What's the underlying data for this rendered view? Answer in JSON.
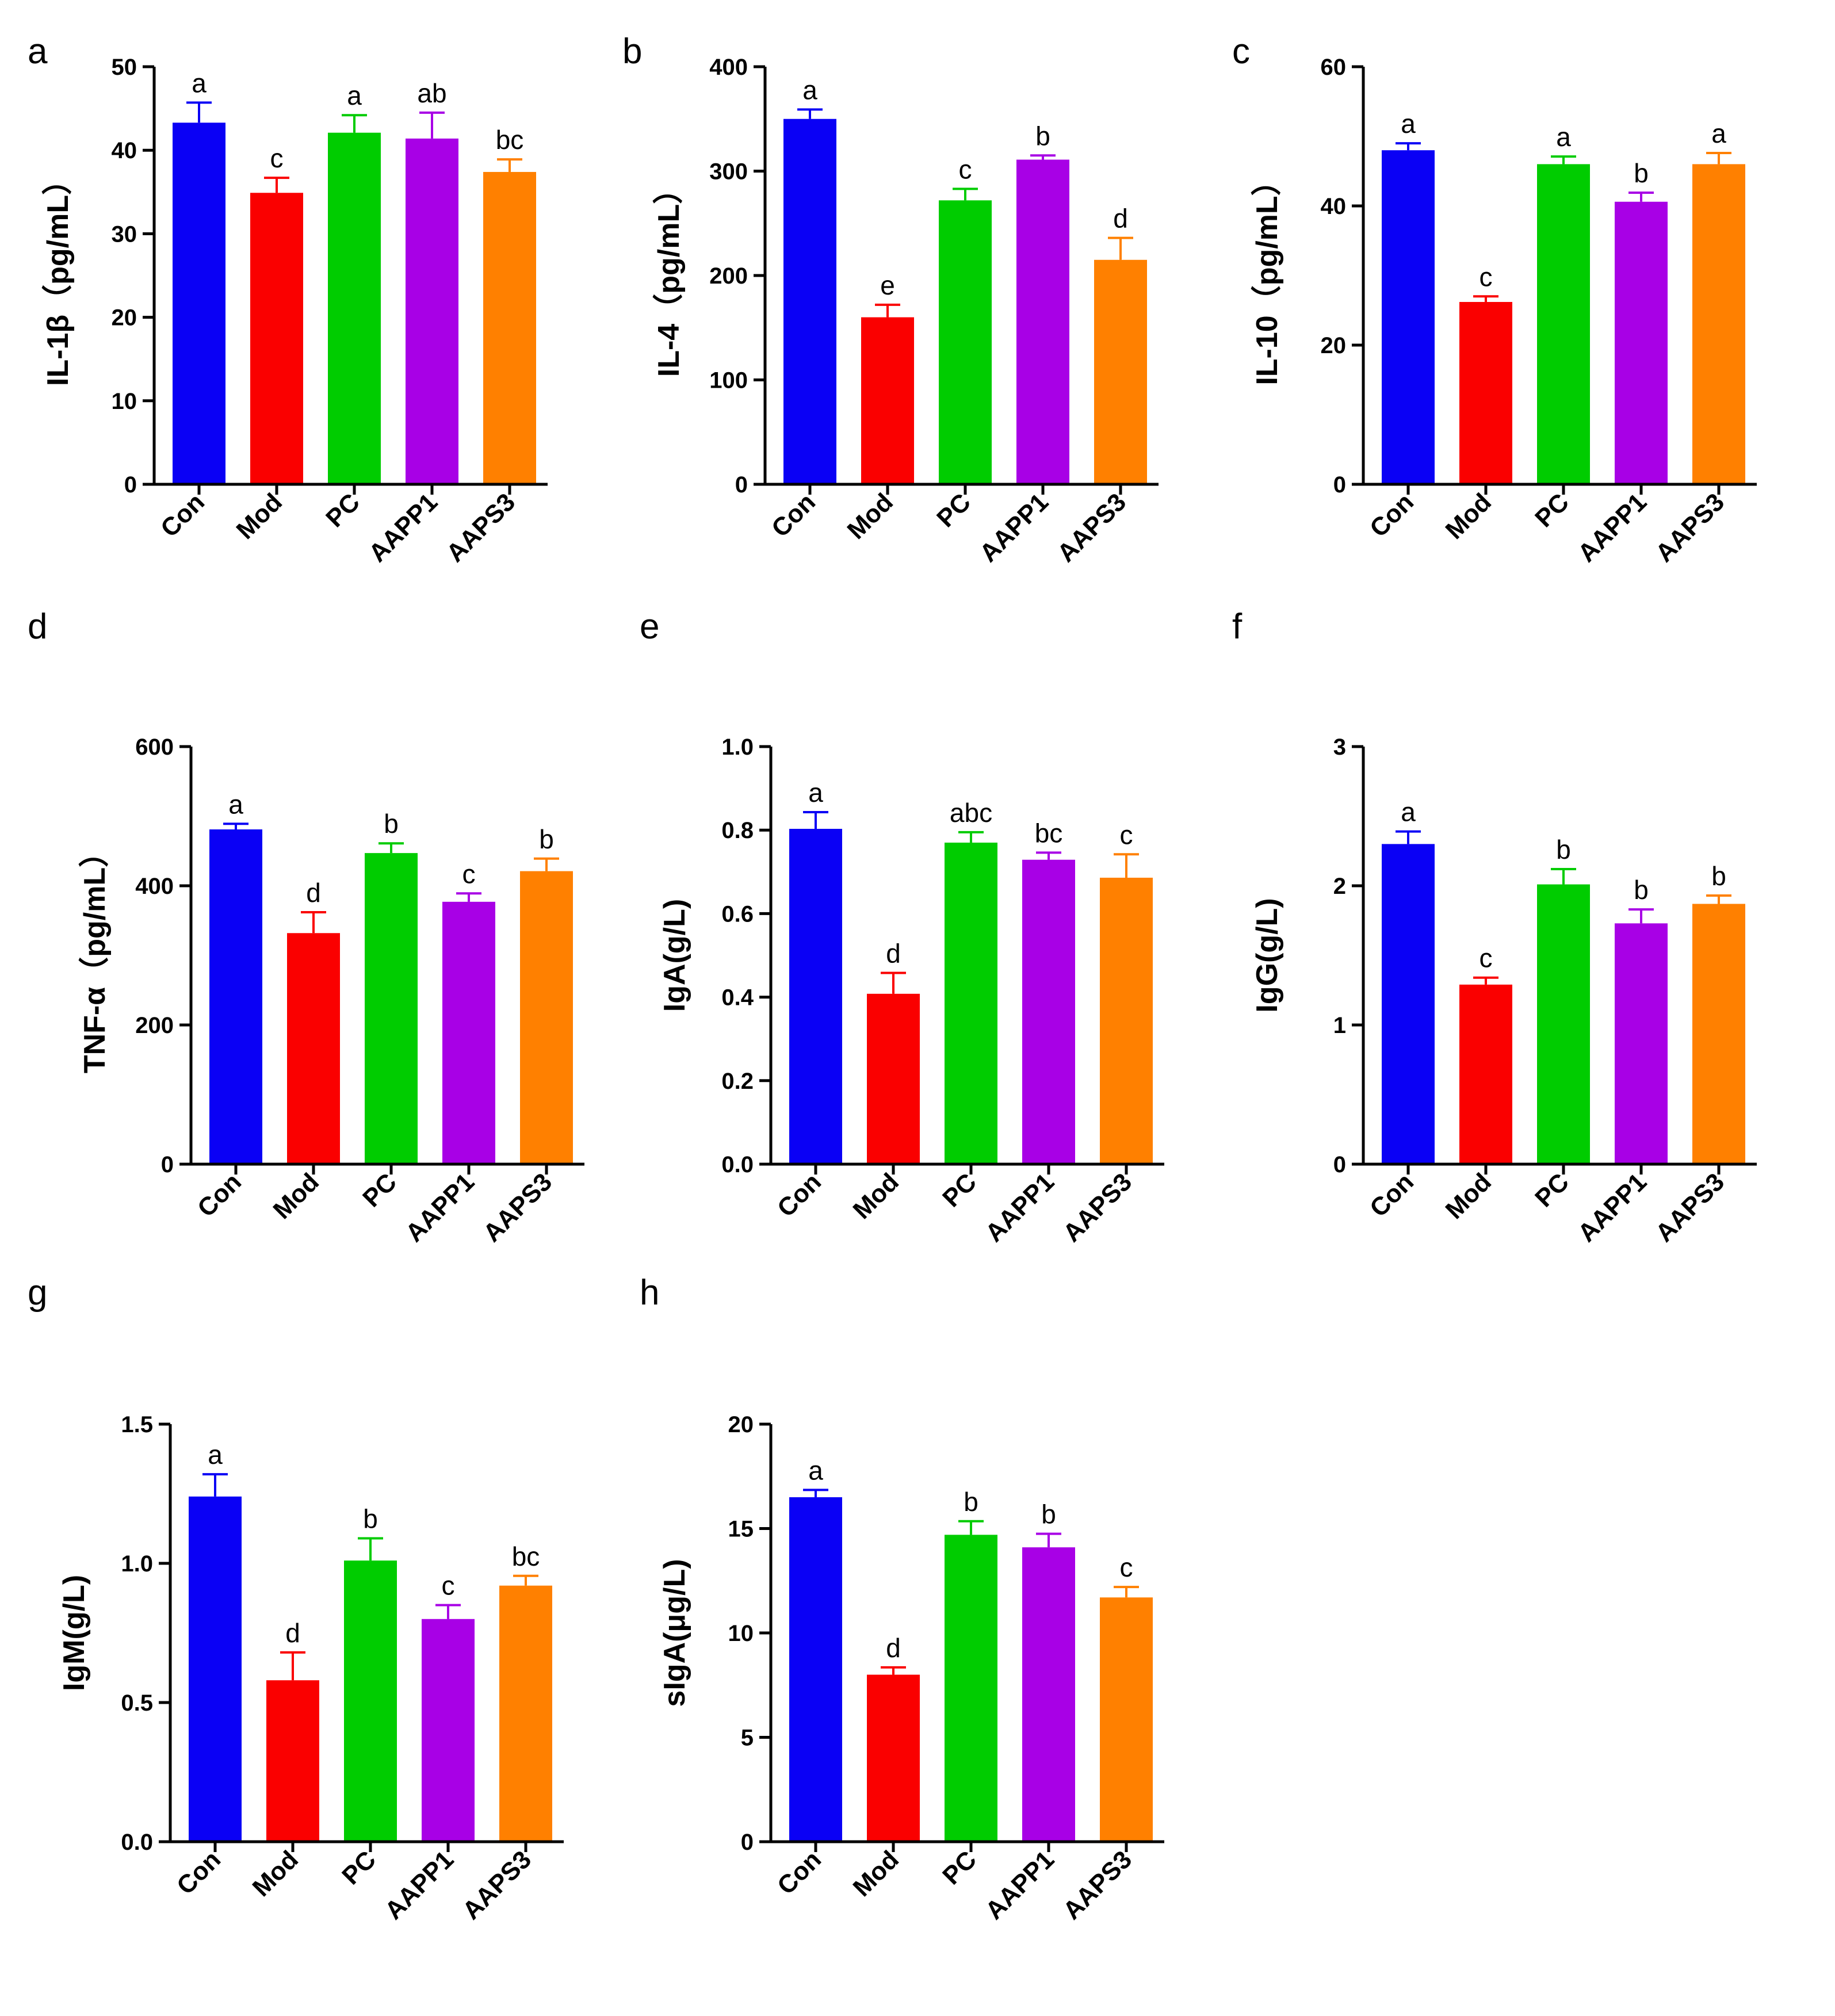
{
  "colors": {
    "Con": "#0a00f5",
    "Mod": "#fa0000",
    "PC": "#00cc00",
    "AAPP1": "#a800e6",
    "AAPS3": "#ff8000",
    "axis": "#000000"
  },
  "chart_data": [
    {
      "type": "bar",
      "panel": "a",
      "ylabel": "IL-1β（pg/mL）",
      "categories": [
        "Con",
        "Mod",
        "PC",
        "AAPP1",
        "AAPS3"
      ],
      "values": [
        43.3,
        34.9,
        42.1,
        41.4,
        37.4
      ],
      "errors": [
        2.4,
        1.8,
        2.1,
        3.1,
        1.5
      ],
      "significance": [
        "a",
        "c",
        "a",
        "ab",
        "bc"
      ],
      "ylim": [
        0,
        50
      ],
      "ticks": [
        "0",
        "10",
        "20",
        "30",
        "40",
        "50"
      ]
    },
    {
      "type": "bar",
      "panel": "b",
      "ylabel": "IL-4（pg/mL）",
      "categories": [
        "Con",
        "Mod",
        "PC",
        "AAPP1",
        "AAPS3"
      ],
      "values": [
        350,
        160,
        272,
        311,
        215
      ],
      "errors": [
        9,
        12,
        11,
        4,
        21
      ],
      "significance": [
        "a",
        "e",
        "c",
        "b",
        "d"
      ],
      "ylim": [
        0,
        400
      ],
      "ticks": [
        "0",
        "100",
        "200",
        "300",
        "400"
      ]
    },
    {
      "type": "bar",
      "panel": "c",
      "ylabel": "IL-10（pg/mL）",
      "categories": [
        "Con",
        "Mod",
        "PC",
        "AAPP1",
        "AAPS3"
      ],
      "values": [
        48.0,
        26.2,
        46.0,
        40.6,
        46.0
      ],
      "errors": [
        1.0,
        0.8,
        1.1,
        1.3,
        1.6
      ],
      "significance": [
        "a",
        "c",
        "a",
        "b",
        "a"
      ],
      "ylim": [
        0,
        60
      ],
      "ticks": [
        "0",
        "20",
        "40",
        "60"
      ]
    },
    {
      "type": "bar",
      "panel": "d",
      "ylabel": "TNF-α（pg/mL）",
      "categories": [
        "Con",
        "Mod",
        "PC",
        "AAPP1",
        "AAPS3"
      ],
      "values": [
        481,
        332,
        447,
        377,
        421
      ],
      "errors": [
        8,
        30,
        14,
        12,
        18
      ],
      "significance": [
        "a",
        "d",
        "b",
        "c",
        "b"
      ],
      "ylim": [
        0,
        600
      ],
      "ticks": [
        "0",
        "200",
        "400",
        "600"
      ]
    },
    {
      "type": "bar",
      "panel": "e",
      "ylabel": "IgA(g/L)",
      "categories": [
        "Con",
        "Mod",
        "PC",
        "AAPP1",
        "AAPS3"
      ],
      "values": [
        0.803,
        0.408,
        0.77,
        0.729,
        0.686
      ],
      "errors": [
        0.04,
        0.05,
        0.025,
        0.017,
        0.056
      ],
      "significance": [
        "a",
        "d",
        "abc",
        "bc",
        "c"
      ],
      "ylim": [
        0,
        1.0
      ],
      "ticks": [
        "0.0",
        "0.2",
        "0.4",
        "0.6",
        "0.8",
        "1.0"
      ]
    },
    {
      "type": "bar",
      "panel": "f",
      "ylabel": "IgG(g/L)",
      "categories": [
        "Con",
        "Mod",
        "PC",
        "AAPP1",
        "AAPS3"
      ],
      "values": [
        2.3,
        1.29,
        2.01,
        1.73,
        1.87
      ],
      "errors": [
        0.09,
        0.05,
        0.11,
        0.1,
        0.06
      ],
      "significance": [
        "a",
        "c",
        "b",
        "b",
        "b"
      ],
      "ylim": [
        0,
        3
      ],
      "ticks": [
        "0",
        "1",
        "2",
        "3"
      ]
    },
    {
      "type": "bar",
      "panel": "g",
      "ylabel": "IgM(g/L)",
      "categories": [
        "Con",
        "Mod",
        "PC",
        "AAPP1",
        "AAPS3"
      ],
      "values": [
        1.24,
        0.58,
        1.01,
        0.8,
        0.92
      ],
      "errors": [
        0.08,
        0.1,
        0.08,
        0.05,
        0.035
      ],
      "significance": [
        "a",
        "d",
        "b",
        "c",
        "bc"
      ],
      "ylim": [
        0,
        1.5
      ],
      "ticks": [
        "0.0",
        "0.5",
        "1.0",
        "1.5"
      ]
    },
    {
      "type": "bar",
      "panel": "h",
      "ylabel": "sIgA(μg/L)",
      "categories": [
        "Con",
        "Mod",
        "PC",
        "AAPP1",
        "AAPS3"
      ],
      "values": [
        16.5,
        8.0,
        14.7,
        14.1,
        11.7
      ],
      "errors": [
        0.35,
        0.35,
        0.65,
        0.65,
        0.5
      ],
      "significance": [
        "a",
        "d",
        "b",
        "b",
        "c"
      ],
      "ylim": [
        0,
        20
      ],
      "ticks": [
        "0",
        "5",
        "10",
        "15",
        "20"
      ]
    }
  ]
}
